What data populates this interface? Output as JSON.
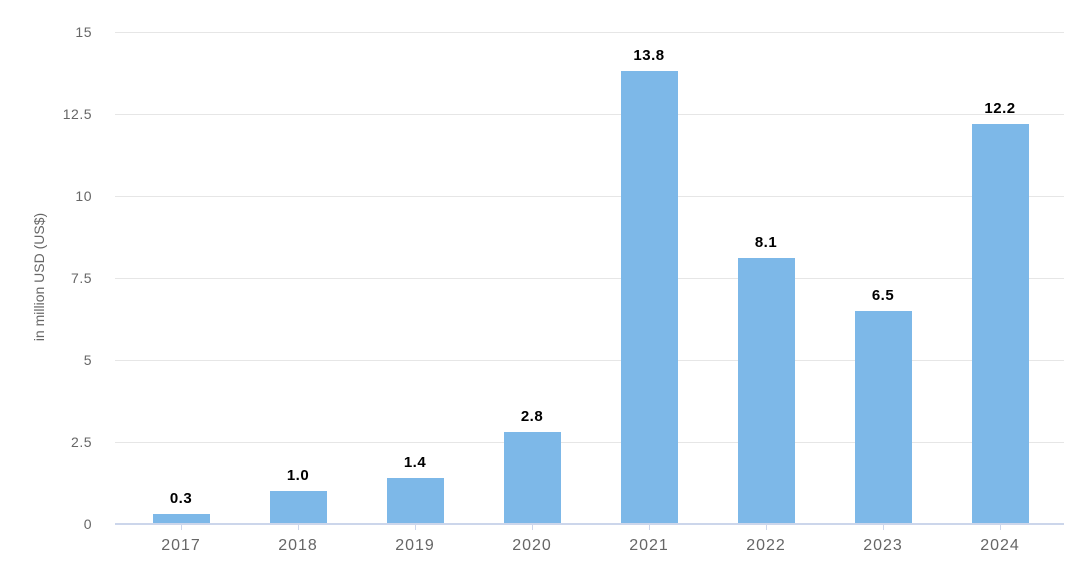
{
  "chart_data": {
    "type": "bar",
    "categories": [
      "2017",
      "2018",
      "2019",
      "2020",
      "2021",
      "2022",
      "2023",
      "2024"
    ],
    "values": [
      0.3,
      1.0,
      1.4,
      2.8,
      13.8,
      8.1,
      6.5,
      12.2
    ],
    "value_labels": [
      "0.3",
      "1.0",
      "1.4",
      "2.8",
      "13.8",
      "8.1",
      "6.5",
      "12.2"
    ],
    "xlabel": "",
    "ylabel": "in million USD (US$)",
    "ylim": [
      0,
      15
    ],
    "ytick_step": 2.5,
    "yticks": [
      "0",
      "2.5",
      "5",
      "7.5",
      "10",
      "12.5",
      "15"
    ],
    "grid": true,
    "legend": "none",
    "colors": {
      "bar": "#7db8e8",
      "gridline": "#e6e6e6",
      "axis_line": "#ccd6eb",
      "axis_text": "#666666",
      "value_label": "#000000",
      "background": "#ffffff"
    }
  }
}
